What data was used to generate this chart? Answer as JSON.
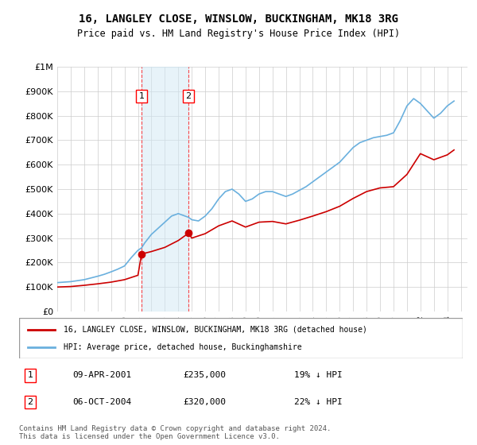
{
  "title": "16, LANGLEY CLOSE, WINSLOW, BUCKINGHAM, MK18 3RG",
  "subtitle": "Price paid vs. HM Land Registry's House Price Index (HPI)",
  "xlabel": "",
  "ylabel": "",
  "ylim": [
    0,
    1000000
  ],
  "yticks": [
    0,
    100000,
    200000,
    300000,
    400000,
    500000,
    600000,
    700000,
    800000,
    900000,
    1000000
  ],
  "ytick_labels": [
    "£0",
    "£100K",
    "£200K",
    "£300K",
    "£400K",
    "£500K",
    "£600K",
    "£700K",
    "£800K",
    "£900K",
    "£1M"
  ],
  "hpi_color": "#6ab0de",
  "price_color": "#cc0000",
  "marker_color": "#cc0000",
  "sale1_date": 2001.27,
  "sale1_price": 235000,
  "sale1_label": "1",
  "sale2_date": 2004.76,
  "sale2_price": 320000,
  "sale2_label": "2",
  "legend_line1": "16, LANGLEY CLOSE, WINSLOW, BUCKINGHAM, MK18 3RG (detached house)",
  "legend_line2": "HPI: Average price, detached house, Buckinghamshire",
  "table_row1": [
    "1",
    "09-APR-2001",
    "£235,000",
    "19% ↓ HPI"
  ],
  "table_row2": [
    "2",
    "06-OCT-2004",
    "£320,000",
    "22% ↓ HPI"
  ],
  "footer": "Contains HM Land Registry data © Crown copyright and database right 2024.\nThis data is licensed under the Open Government Licence v3.0.",
  "hpi_x": [
    1995,
    1995.5,
    1996,
    1996.5,
    1997,
    1997.5,
    1998,
    1998.5,
    1999,
    1999.5,
    2000,
    2000.5,
    2001,
    2001.27,
    2001.5,
    2002,
    2002.5,
    2003,
    2003.5,
    2004,
    2004.5,
    2004.76,
    2005,
    2005.5,
    2006,
    2006.5,
    2007,
    2007.5,
    2008,
    2008.5,
    2009,
    2009.5,
    2010,
    2010.5,
    2011,
    2011.5,
    2012,
    2012.5,
    2013,
    2013.5,
    2014,
    2014.5,
    2015,
    2015.5,
    2016,
    2016.5,
    2017,
    2017.5,
    2018,
    2018.5,
    2019,
    2019.5,
    2020,
    2020.5,
    2021,
    2021.5,
    2022,
    2022.5,
    2023,
    2023.5,
    2024,
    2024.5
  ],
  "hpi_y": [
    118000,
    120000,
    122000,
    126000,
    130000,
    137000,
    144000,
    152000,
    162000,
    173000,
    186000,
    220000,
    250000,
    260000,
    280000,
    315000,
    340000,
    365000,
    390000,
    400000,
    390000,
    385000,
    375000,
    370000,
    390000,
    420000,
    460000,
    490000,
    500000,
    480000,
    450000,
    460000,
    480000,
    490000,
    490000,
    480000,
    470000,
    480000,
    495000,
    510000,
    530000,
    550000,
    570000,
    590000,
    610000,
    640000,
    670000,
    690000,
    700000,
    710000,
    715000,
    720000,
    730000,
    780000,
    840000,
    870000,
    850000,
    820000,
    790000,
    810000,
    840000,
    860000
  ],
  "price_x": [
    1995,
    1996,
    1997,
    1998,
    1999,
    2000,
    2001,
    2001.27,
    2002,
    2003,
    2004,
    2004.76,
    2005,
    2006,
    2007,
    2008,
    2009,
    2010,
    2011,
    2012,
    2013,
    2014,
    2015,
    2016,
    2017,
    2018,
    2019,
    2020,
    2021,
    2022,
    2023,
    2024,
    2024.5
  ],
  "price_y": [
    100000,
    102000,
    107000,
    113000,
    120000,
    130000,
    148000,
    235000,
    245000,
    262000,
    290000,
    320000,
    300000,
    318000,
    350000,
    370000,
    345000,
    365000,
    368000,
    358000,
    373000,
    390000,
    408000,
    430000,
    462000,
    490000,
    505000,
    510000,
    560000,
    645000,
    620000,
    640000,
    660000
  ]
}
